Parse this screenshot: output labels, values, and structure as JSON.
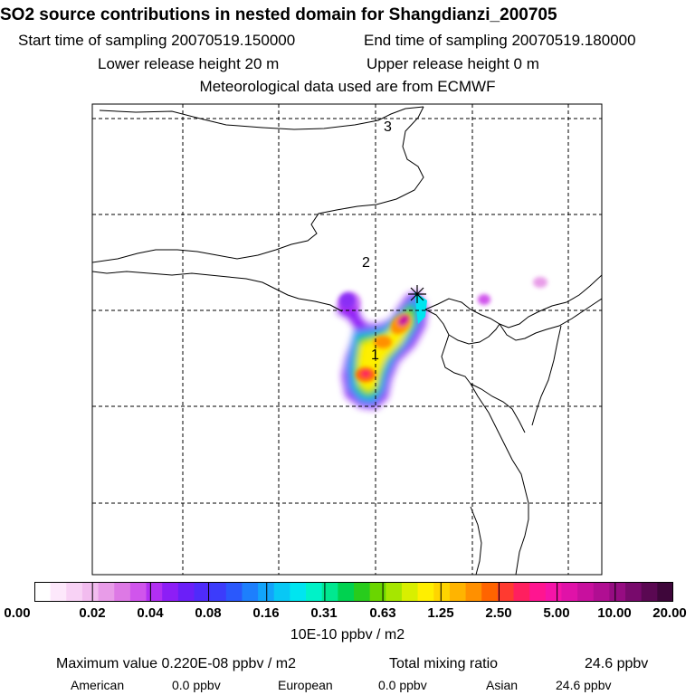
{
  "header": {
    "title": "SO2 source contributions in nested domain for Shangdianzi_200705",
    "start_sampling": "Start time of sampling 20070519.150000",
    "end_sampling": "End time of sampling 20070519.180000",
    "lower_release": "Lower release height   20 m",
    "upper_release": "Upper release height    0 m",
    "met_data": "Meteorological data used are from ECMWF"
  },
  "map": {
    "markers": [
      "1",
      "2",
      "3"
    ]
  },
  "colorbar": {
    "colors": [
      "#ffffff",
      "#fde8fb",
      "#f8d2f5",
      "#f2bcef",
      "#e89ce8",
      "#dd79e5",
      "#d055ec",
      "#b22ff2",
      "#8d1ef6",
      "#6b1ff8",
      "#4f2bfa",
      "#3c3cfb",
      "#2a58fc",
      "#1d7ffd",
      "#12a4fb",
      "#08c8f5",
      "#00e5f0",
      "#00f2c8",
      "#00e890",
      "#00d250",
      "#28cc1c",
      "#6ad600",
      "#a6e600",
      "#d8ef00",
      "#ffef00",
      "#ffd500",
      "#ffb400",
      "#ff9000",
      "#ff6400",
      "#ff3a30",
      "#ff1f5f",
      "#ff1590",
      "#f514a8",
      "#e012a8",
      "#c8109e",
      "#b00e92",
      "#960c82",
      "#780a6c",
      "#5a0852",
      "#3e063a"
    ],
    "tick_labels": [
      "0.00",
      "0.02",
      "0.04",
      "0.08",
      "0.16",
      "0.31",
      "0.63",
      "1.25",
      "2.50",
      "5.00",
      "10.00",
      "20.00"
    ],
    "unit": "10E-10 ppbv / m2"
  },
  "footer": {
    "max_value": "Maximum value  0.220E-08 ppbv / m2",
    "total_label": "Total mixing ratio",
    "total_value": "24.6 ppbv",
    "american_label": "American",
    "american_value": "0.0 ppbv",
    "european_label": "European",
    "european_value": "0.0 ppbv",
    "asian_label": "Asian",
    "asian_value": "24.6 ppbv"
  }
}
